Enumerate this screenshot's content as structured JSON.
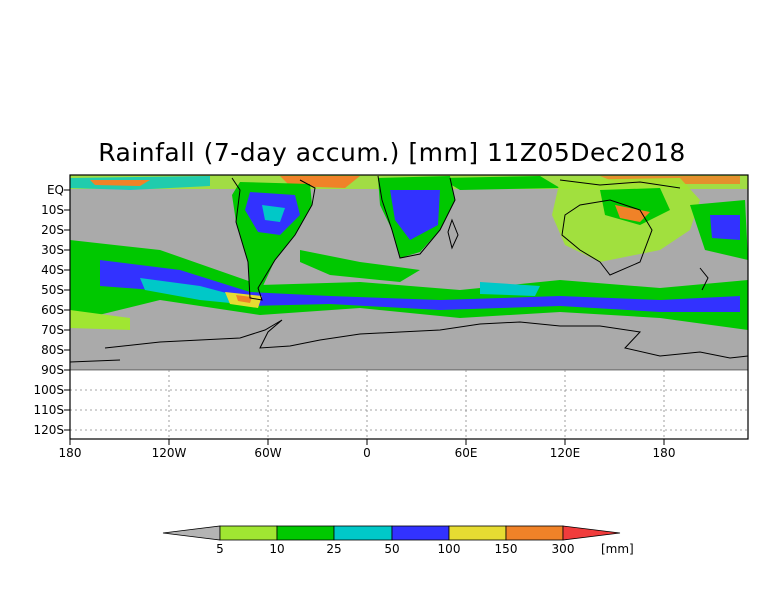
{
  "title": "Rainfall (7-day accum.) [mm] 11Z05Dec2018",
  "lat_labels": [
    "EQ",
    "10S",
    "20S",
    "30S",
    "40S",
    "50S",
    "60S",
    "70S",
    "80S",
    "90S",
    "100S",
    "110S",
    "120S"
  ],
  "lon_labels": [
    "180",
    "120W",
    "60W",
    "0",
    "60E",
    "120E",
    "180"
  ],
  "colorbar": {
    "thresholds": [
      "5",
      "10",
      "25",
      "50",
      "100",
      "150",
      "300"
    ],
    "unit": "[mm]",
    "colors": {
      "below": "#b4b4b4",
      "c5_10": "#a0e632",
      "c10_25": "#00c800",
      "c25_50": "#00c8c8",
      "c50_100": "#3232ff",
      "c100_150": "#e6dc32",
      "c150_300": "#f08228",
      "above": "#f03c3c"
    }
  },
  "map_colors": {
    "background": "#aaaaaa",
    "coast": "#000000"
  }
}
